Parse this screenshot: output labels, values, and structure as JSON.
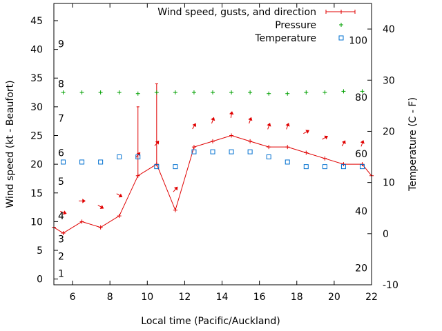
{
  "chart_data": {
    "type": "line",
    "title": "",
    "xlabel": "Local time (Pacific/Auckland)",
    "ylabel": "Wind speed (kt - Beaufort)",
    "y2label": "Temperature (C - F)",
    "xlim": [
      5,
      22
    ],
    "ylim": [
      -1,
      48
    ],
    "y2lim": [
      -10,
      45
    ],
    "x_ticks": [
      6,
      8,
      10,
      12,
      14,
      16,
      18,
      20,
      22
    ],
    "y_ticks": [
      0,
      5,
      10,
      15,
      20,
      25,
      30,
      35,
      40,
      45
    ],
    "y2_ticks": [
      -10,
      0,
      10,
      20,
      30,
      40
    ],
    "beaufort_labels": [
      {
        "label": "1",
        "y": 1
      },
      {
        "label": "2",
        "y": 4
      },
      {
        "label": "3",
        "y": 7
      },
      {
        "label": "4",
        "y": 11
      },
      {
        "label": "5",
        "y": 17
      },
      {
        "label": "6",
        "y": 22
      },
      {
        "label": "7",
        "y": 28
      },
      {
        "label": "8",
        "y": 34
      },
      {
        "label": "9",
        "y": 41
      }
    ],
    "fahrenheit_labels": [
      {
        "label": "20",
        "y2": -6.7
      },
      {
        "label": "40",
        "y2": 4.4
      },
      {
        "label": "60",
        "y2": 15.6
      },
      {
        "label": "80",
        "y2": 26.7
      },
      {
        "label": "100",
        "y2": 37.8
      }
    ],
    "legend": {
      "position": "top-right",
      "entries": [
        "Wind speed, gusts, and direction",
        "Pressure",
        "Temperature"
      ]
    },
    "colors": {
      "wind": "#e00000",
      "arrow": "#e00000",
      "pressure": "#00a000",
      "temperature": "#0070d0"
    },
    "series": [
      {
        "name": "Wind speed, gusts, and direction",
        "axis": "y",
        "x": [
          5,
          5.5,
          6.5,
          7.5,
          8.5,
          9.5,
          10.5,
          11.5,
          12.5,
          13.5,
          14.5,
          15.5,
          16.5,
          17.5,
          18.5,
          19.5,
          20.5,
          21.5,
          22
        ],
        "values": [
          9,
          8,
          10,
          9,
          11,
          18,
          20,
          12,
          23,
          24,
          25,
          24,
          23,
          23,
          22,
          21,
          20,
          20,
          18
        ],
        "gusts": [
          null,
          null,
          null,
          null,
          null,
          30,
          34,
          null,
          null,
          null,
          null,
          null,
          null,
          null,
          null,
          null,
          null,
          null,
          null
        ],
        "direction_x": [
          5.5,
          6.5,
          7.5,
          8.5,
          9.5,
          10.5,
          11.5,
          12.5,
          13.5,
          14.5,
          15.5,
          16.5,
          17.5,
          18.5,
          19.5,
          20.5,
          21.5
        ],
        "direction_deg": [
          290,
          270,
          300,
          300,
          220,
          220,
          220,
          210,
          200,
          190,
          200,
          200,
          200,
          240,
          240,
          210,
          200
        ]
      },
      {
        "name": "Pressure",
        "axis": "y",
        "x": [
          5.5,
          6.5,
          7.5,
          8.5,
          9.5,
          10.5,
          11.5,
          12.5,
          13.5,
          14.5,
          15.5,
          16.5,
          17.5,
          18.5,
          19.5,
          20.5,
          21.5
        ],
        "values": [
          32.5,
          32.5,
          32.5,
          32.5,
          32.3,
          32.5,
          32.5,
          32.5,
          32.5,
          32.5,
          32.5,
          32.3,
          32.3,
          32.5,
          32.5,
          32.7,
          32.7
        ]
      },
      {
        "name": "Temperature",
        "axis": "y2",
        "x": [
          5.5,
          6.5,
          7.5,
          8.5,
          9.5,
          10.5,
          11.5,
          12.5,
          13.5,
          14.5,
          15.5,
          16.5,
          17.5,
          18.5,
          19.5,
          20.5,
          21.5
        ],
        "values": [
          14,
          14,
          14,
          15,
          15,
          13.1,
          13.1,
          16,
          16,
          16,
          16,
          15,
          14,
          13.1,
          13.1,
          13.1,
          13.1
        ]
      }
    ]
  }
}
